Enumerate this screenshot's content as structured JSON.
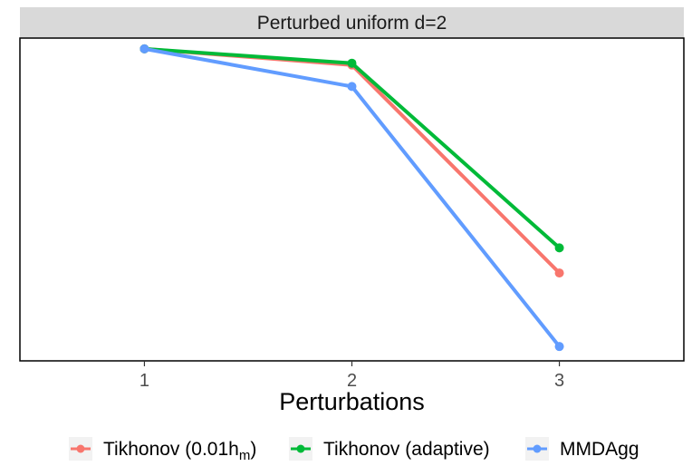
{
  "chart_data": {
    "type": "line",
    "facet_title": "Perturbed uniform d=2",
    "xlabel": "Perturbations",
    "ylabel": "",
    "x": [
      1,
      2,
      3
    ],
    "x_tick_labels": [
      "1",
      "2",
      "3"
    ],
    "xlim": [
      0.4,
      3.6
    ],
    "ylim": [
      0.13,
      1.03
    ],
    "y_ticks_shown": false,
    "grid": false,
    "legend_position": "bottom",
    "series": [
      {
        "name": "Tikhonov (0.01h",
        "subscript": "m",
        "suffix": ")",
        "color": "#F8766D",
        "values": [
          1.0,
          0.955,
          0.375
        ]
      },
      {
        "name": "Tikhonov (adaptive)",
        "color": "#00BA38",
        "values": [
          1.0,
          0.96,
          0.445
        ]
      },
      {
        "name": "MMDAgg",
        "color": "#619CFF",
        "values": [
          1.0,
          0.895,
          0.17
        ]
      }
    ]
  }
}
